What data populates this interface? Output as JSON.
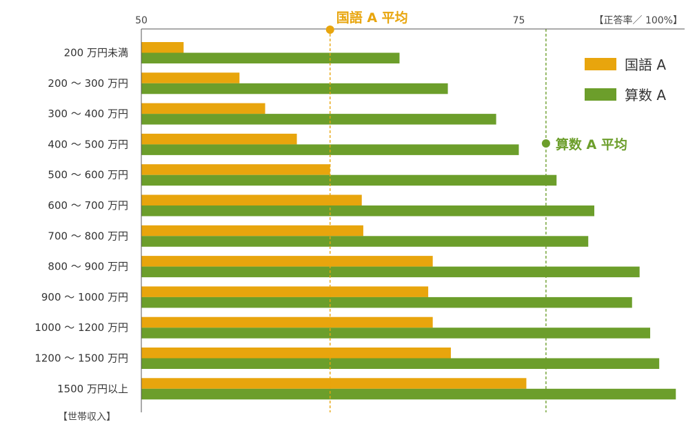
{
  "chart_data": {
    "type": "bar",
    "orientation": "horizontal",
    "unit_label": "【正答率／ 100%】",
    "category_axis_label": "【世帯収入】",
    "categories": [
      "200 万円未満",
      "200 ～ 300 万円",
      "300 ～ 400 万円",
      "400 ～ 500 万円",
      "500 ～ 600 万円",
      "600 ～ 700 万円",
      "700 ～ 800 万円",
      "800 ～ 900 万円",
      "900 ～ 1000 万円",
      "1000 ～ 1200 万円",
      "1200 ～ 1500 万円",
      "1500 万円以上"
    ],
    "series": [
      {
        "name": "国語 A",
        "color": "#e8a50d",
        "values": [
          52.8,
          56.5,
          58.2,
          60.3,
          62.5,
          64.6,
          64.7,
          69.3,
          69.0,
          69.3,
          70.5,
          75.5
        ]
      },
      {
        "name": "算数 A",
        "color": "#6c9e2b",
        "values": [
          67.1,
          70.3,
          73.5,
          75.0,
          77.5,
          80.0,
          79.6,
          83.0,
          82.5,
          83.7,
          84.3,
          85.4
        ]
      }
    ],
    "xlim": [
      50,
      86
    ],
    "xticks": [
      50,
      75
    ],
    "reference_lines": [
      {
        "label": "国語 A 平均",
        "value": 62.5,
        "color": "#e8a50d"
      },
      {
        "label": "算数 A 平均",
        "value": 76.8,
        "color": "#6c9e2b"
      }
    ],
    "legend_position": "top-right",
    "grid": false
  }
}
